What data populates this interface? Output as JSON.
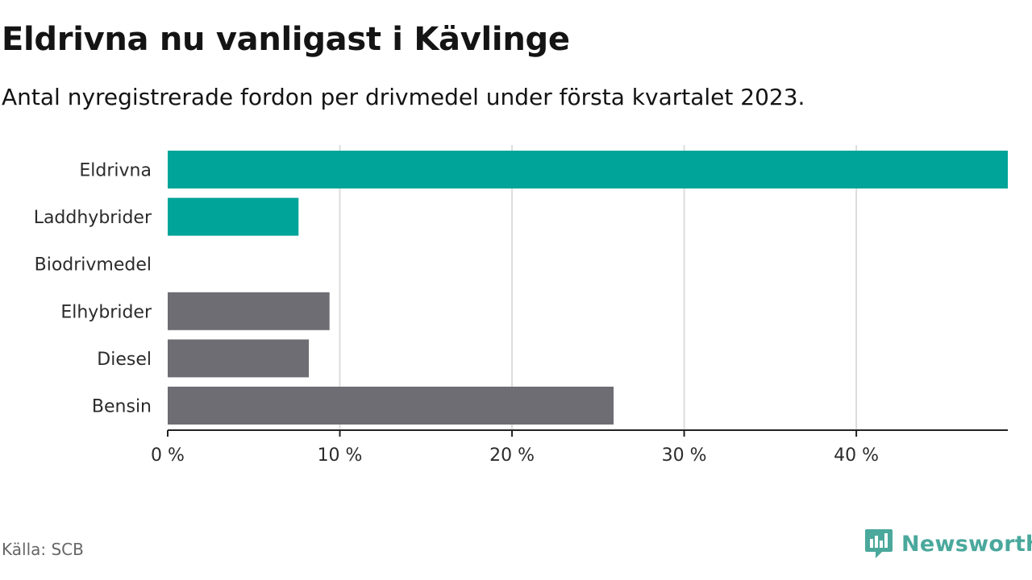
{
  "title": "Eldrivna nu vanligast i Kävlinge",
  "subtitle": "Antal nyregistrerade fordon per drivmedel under första kvartalet 2023.",
  "source": "Källa: SCB",
  "brand": {
    "name": "Newsworthy",
    "color": "#4aa89c",
    "icon": "newsworthy-chart-bubble-icon"
  },
  "chart_data": {
    "type": "bar",
    "orientation": "horizontal",
    "title": "Eldrivna nu vanligast i Kävlinge",
    "subtitle": "Antal nyregistrerade fordon per drivmedel under första kvartalet 2023.",
    "categories": [
      "Eldrivna",
      "Laddhybrider",
      "Biodrivmedel",
      "Elhybrider",
      "Diesel",
      "Bensin"
    ],
    "values": [
      48.8,
      7.6,
      0,
      9.4,
      8.2,
      25.9
    ],
    "colors": [
      "#00a499",
      "#00a499",
      "#00a499",
      "#6e6d73",
      "#6e6d73",
      "#6e6d73"
    ],
    "xlim": [
      0,
      48.8
    ],
    "xticks": [
      0,
      10,
      20,
      30,
      40
    ],
    "xtick_labels": [
      "0 %",
      "10 %",
      "20 %",
      "30 %",
      "40 %"
    ],
    "unit": "%",
    "grid": "vertical"
  }
}
